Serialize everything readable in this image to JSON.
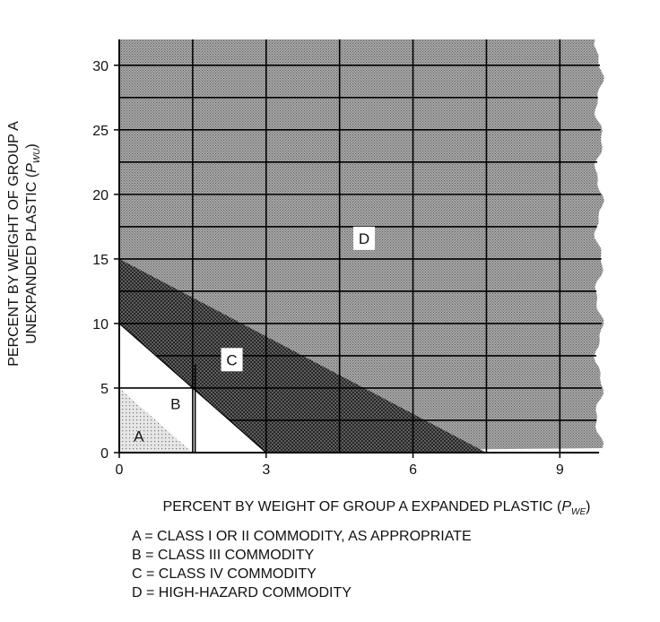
{
  "chart_data": {
    "type": "area",
    "xlabel_main": "PERCENT BY WEIGHT OF GROUP A EXPANDED PLASTIC (",
    "xlabel_var": "P",
    "xlabel_sub": "WE",
    "xlabel_end": ")",
    "ylabel_line1": "PERCENT BY WEIGHT OF GROUP A",
    "ylabel_line2_main": "UNEXPANDED PLASTIC (",
    "ylabel_line2_var": "P",
    "ylabel_line2_sub": "WU",
    "ylabel_line2_end": ")",
    "xlim": [
      0,
      9.8
    ],
    "ylim": [
      0,
      32
    ],
    "x_ticks": [
      "0",
      "3",
      "6",
      "9"
    ],
    "x_tick_values": [
      0,
      3,
      6,
      9
    ],
    "y_ticks": [
      "0",
      "5",
      "10",
      "15",
      "20",
      "25",
      "30"
    ],
    "y_tick_values": [
      0,
      5,
      10,
      15,
      20,
      25,
      30
    ],
    "grid": true,
    "regions": [
      {
        "label": "A",
        "note": "triangle",
        "vertices": [
          [
            0,
            0
          ],
          [
            0,
            5
          ],
          [
            1.5,
            0
          ]
        ]
      },
      {
        "label": "B",
        "vertices": [
          [
            0,
            0
          ],
          [
            0,
            10
          ],
          [
            1.55,
            6.8
          ],
          [
            1.55,
            0
          ]
        ]
      },
      {
        "label": "C",
        "boundary_lower": [
          [
            0,
            10
          ],
          [
            3,
            0
          ]
        ],
        "boundary_upper": [
          [
            0,
            15
          ],
          [
            7.5,
            0
          ]
        ]
      },
      {
        "label": "D",
        "boundary_lower": [
          [
            0,
            15
          ],
          [
            7.5,
            0
          ]
        ]
      }
    ],
    "region_labels": [
      {
        "label": "A",
        "x": 0.4,
        "y": 1.3
      },
      {
        "label": "B",
        "x": 1.15,
        "y": 3.8
      },
      {
        "label": "C",
        "x": 2.3,
        "y": 7.2
      },
      {
        "label": "D",
        "x": 5.0,
        "y": 16.6
      }
    ],
    "legend": [
      "A = CLASS I OR II COMMODITY, AS APPROPRIATE",
      "B = CLASS III COMMODITY",
      "C = CLASS IV COMMODITY",
      "D = HIGH-HAZARD COMMODITY"
    ],
    "colors": {
      "region_d": "#9a9a9a",
      "region_c": "#555555",
      "region_a": "#cfcfcf",
      "grid": "#000000"
    }
  }
}
